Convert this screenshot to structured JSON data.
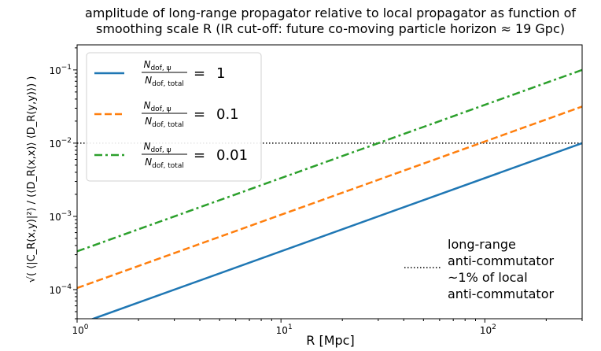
{
  "chart_data": {
    "type": "line",
    "title": [
      "amplitude of long-range propagator relative to local propagator as function of",
      "smoothing scale R  (IR cut-off: future co-moving particle horizon ≈ 19 Gpc)"
    ],
    "xlabel": "R [Mpc]",
    "ylabel": "√( ⟨|C_R(x,y)|²⟩ / (⟨D_R(x,x)⟩ ⟨D_R(y,y)⟩) )",
    "xscale": "log",
    "yscale": "log",
    "xlim": [
      1,
      300
    ],
    "ylim": [
      4e-05,
      0.22
    ],
    "x_ticks": [
      {
        "value": 1,
        "label": "10^0"
      },
      {
        "value": 10,
        "label": "10^1"
      },
      {
        "value": 100,
        "label": "10^2"
      }
    ],
    "y_ticks": [
      {
        "value": 0.0001,
        "label": "10^−4"
      },
      {
        "value": 0.001,
        "label": "10^−3"
      },
      {
        "value": 0.01,
        "label": "10^−2"
      },
      {
        "value": 0.1,
        "label": "10^−1"
      }
    ],
    "grid": false,
    "legend_position": "upper-left",
    "series": [
      {
        "name": "N_dof,ψ / N_dof,total = 1",
        "ratio": "1",
        "color": "#1f77b4",
        "style": "solid",
        "x": [
          1,
          300
        ],
        "y": [
          3.33e-05,
          0.01
        ]
      },
      {
        "name": "N_dof,ψ / N_dof,total = 0.1",
        "ratio": "0.1",
        "color": "#ff7f0e",
        "style": "dashed",
        "x": [
          1,
          300
        ],
        "y": [
          0.000105,
          0.0316
        ]
      },
      {
        "name": "N_dof,ψ / N_dof,total = 0.01",
        "ratio": "0.01",
        "color": "#2ca02c",
        "style": "dashdot",
        "x": [
          1,
          300
        ],
        "y": [
          0.000333,
          0.1
        ]
      }
    ],
    "reference_line": {
      "y": 0.01,
      "style": "dotted",
      "color": "#000000"
    },
    "annotation": {
      "lines": [
        "long-range",
        "anti-commutator",
        " ~1% of local",
        "anti-commutator"
      ]
    },
    "legend_labels": {
      "numerator": "N",
      "numerator_sub": "dof, ψ",
      "denominator": "N",
      "denominator_sub": "dof, total",
      "equals": "="
    }
  }
}
